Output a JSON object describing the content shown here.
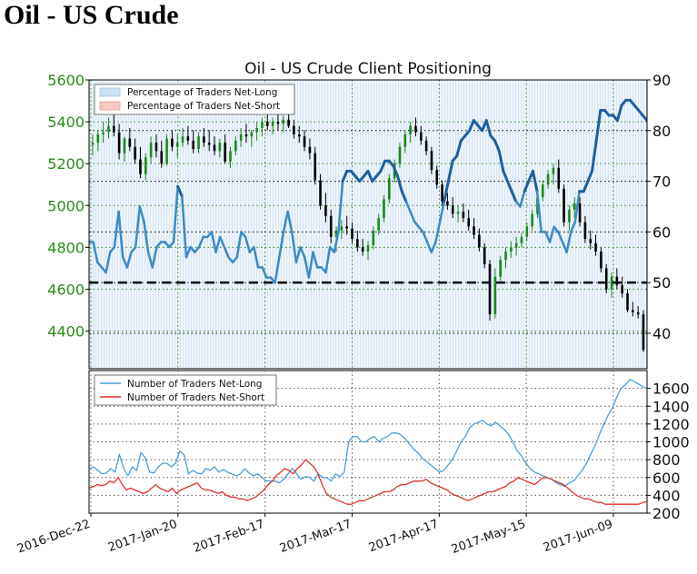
{
  "page": {
    "heading": "Oil - US Crude"
  },
  "chart_data": [
    {
      "type": "line",
      "title": "Oil - US Crude Client Positioning",
      "x_ticks": [
        "2016-Dec-22",
        "2017-Jan-20",
        "2017-Feb-17",
        "2017-Mar-17",
        "2017-Apr-17",
        "2017-May-15",
        "2017-Jun-09"
      ],
      "left_axis": {
        "ylim": [
          4220,
          5600
        ],
        "ticks": [
          4400,
          4600,
          4800,
          5000,
          5200,
          5400,
          5600
        ],
        "color": "#2a8a1a"
      },
      "right_axis": {
        "ylim": [
          33,
          90
        ],
        "ticks": [
          40,
          50,
          60,
          70,
          80,
          90
        ]
      },
      "grid": true,
      "legend": {
        "placement": "top-left",
        "entries": [
          "Percentage of Traders Net-Long",
          "Percentage of Traders Net-Short"
        ]
      },
      "reference_line_pct": 50,
      "price_ohlc": [
        [
          5290,
          5340,
          5240,
          5300
        ],
        [
          5300,
          5360,
          5260,
          5340
        ],
        [
          5340,
          5400,
          5300,
          5350
        ],
        [
          5350,
          5420,
          5320,
          5380
        ],
        [
          5380,
          5440,
          5330,
          5350
        ],
        [
          5350,
          5390,
          5220,
          5250
        ],
        [
          5250,
          5330,
          5210,
          5320
        ],
        [
          5320,
          5370,
          5260,
          5280
        ],
        [
          5280,
          5320,
          5200,
          5220
        ],
        [
          5220,
          5280,
          5130,
          5150
        ],
        [
          5150,
          5250,
          5120,
          5230
        ],
        [
          5230,
          5330,
          5200,
          5300
        ],
        [
          5300,
          5340,
          5230,
          5260
        ],
        [
          5260,
          5310,
          5180,
          5200
        ],
        [
          5200,
          5340,
          5190,
          5320
        ],
        [
          5320,
          5360,
          5260,
          5280
        ],
        [
          5280,
          5340,
          5230,
          5300
        ],
        [
          5300,
          5370,
          5280,
          5330
        ],
        [
          5330,
          5380,
          5290,
          5310
        ],
        [
          5310,
          5360,
          5250,
          5270
        ],
        [
          5270,
          5350,
          5250,
          5330
        ],
        [
          5330,
          5370,
          5280,
          5300
        ],
        [
          5300,
          5360,
          5260,
          5290
        ],
        [
          5290,
          5330,
          5240,
          5260
        ],
        [
          5260,
          5320,
          5230,
          5300
        ],
        [
          5300,
          5340,
          5200,
          5210
        ],
        [
          5210,
          5280,
          5180,
          5260
        ],
        [
          5260,
          5330,
          5240,
          5310
        ],
        [
          5310,
          5370,
          5280,
          5340
        ],
        [
          5340,
          5390,
          5300,
          5330
        ],
        [
          5330,
          5360,
          5280,
          5350
        ],
        [
          5350,
          5400,
          5310,
          5370
        ],
        [
          5370,
          5420,
          5330,
          5400
        ],
        [
          5400,
          5440,
          5360,
          5380
        ],
        [
          5380,
          5420,
          5340,
          5400
        ],
        [
          5400,
          5440,
          5360,
          5390
        ],
        [
          5390,
          5430,
          5350,
          5410
        ],
        [
          5410,
          5440,
          5370,
          5380
        ],
        [
          5380,
          5410,
          5320,
          5340
        ],
        [
          5340,
          5380,
          5300,
          5330
        ],
        [
          5330,
          5360,
          5260,
          5280
        ],
        [
          5280,
          5320,
          5220,
          5250
        ],
        [
          5250,
          5280,
          5100,
          5120
        ],
        [
          5120,
          5150,
          4980,
          5000
        ],
        [
          5000,
          5060,
          4920,
          4950
        ],
        [
          4950,
          4980,
          4820,
          4850
        ],
        [
          4850,
          4900,
          4780,
          4880
        ],
        [
          4880,
          4930,
          4840,
          4900
        ],
        [
          4900,
          4950,
          4860,
          4890
        ],
        [
          4890,
          4920,
          4820,
          4840
        ],
        [
          4840,
          4880,
          4780,
          4800
        ],
        [
          4800,
          4840,
          4760,
          4780
        ],
        [
          4780,
          4830,
          4740,
          4810
        ],
        [
          4810,
          4900,
          4790,
          4880
        ],
        [
          4880,
          4960,
          4860,
          4940
        ],
        [
          4940,
          5050,
          4920,
          5030
        ],
        [
          5030,
          5150,
          5010,
          5130
        ],
        [
          5130,
          5220,
          5110,
          5200
        ],
        [
          5200,
          5300,
          5180,
          5280
        ],
        [
          5280,
          5360,
          5250,
          5340
        ],
        [
          5340,
          5400,
          5300,
          5380
        ],
        [
          5380,
          5420,
          5330,
          5350
        ],
        [
          5350,
          5380,
          5290,
          5310
        ],
        [
          5310,
          5330,
          5240,
          5260
        ],
        [
          5260,
          5280,
          5150,
          5170
        ],
        [
          5170,
          5190,
          5080,
          5100
        ],
        [
          5100,
          5120,
          5000,
          5020
        ],
        [
          5020,
          5060,
          4980,
          5000
        ],
        [
          5000,
          5040,
          4940,
          4960
        ],
        [
          4960,
          5000,
          4920,
          4970
        ],
        [
          4970,
          5010,
          4920,
          4940
        ],
        [
          4940,
          4980,
          4880,
          4900
        ],
        [
          4900,
          4940,
          4840,
          4860
        ],
        [
          4860,
          4890,
          4780,
          4800
        ],
        [
          4800,
          4820,
          4700,
          4720
        ],
        [
          4720,
          4740,
          4450,
          4480
        ],
        [
          4480,
          4700,
          4460,
          4660
        ],
        [
          4660,
          4760,
          4640,
          4740
        ],
        [
          4740,
          4800,
          4700,
          4780
        ],
        [
          4780,
          4830,
          4750,
          4800
        ],
        [
          4800,
          4850,
          4760,
          4820
        ],
        [
          4820,
          4870,
          4800,
          4850
        ],
        [
          4850,
          4920,
          4830,
          4900
        ],
        [
          4900,
          4980,
          4880,
          4960
        ],
        [
          4960,
          5060,
          4940,
          5040
        ],
        [
          5040,
          5120,
          5020,
          5100
        ],
        [
          5100,
          5170,
          5080,
          5150
        ],
        [
          5150,
          5200,
          5100,
          5180
        ],
        [
          5180,
          5220,
          5060,
          5080
        ],
        [
          5080,
          5100,
          4900,
          4920
        ],
        [
          4920,
          5000,
          4880,
          4980
        ],
        [
          4980,
          5040,
          4940,
          5010
        ],
        [
          5010,
          5040,
          4900,
          4920
        ],
        [
          4920,
          4950,
          4820,
          4840
        ],
        [
          4840,
          4880,
          4790,
          4820
        ],
        [
          4820,
          4860,
          4760,
          4780
        ],
        [
          4780,
          4800,
          4680,
          4700
        ],
        [
          4700,
          4720,
          4580,
          4600
        ],
        [
          4600,
          4680,
          4560,
          4660
        ],
        [
          4660,
          4700,
          4600,
          4620
        ],
        [
          4620,
          4660,
          4560,
          4580
        ],
        [
          4580,
          4600,
          4490,
          4500
        ],
        [
          4500,
          4540,
          4470,
          4490
        ],
        [
          4490,
          4520,
          4460,
          4480
        ],
        [
          4480,
          4500,
          4300,
          4310
        ]
      ],
      "net_long_pct": [
        58,
        58,
        54,
        53,
        52,
        56,
        57,
        64,
        55,
        53,
        56,
        57,
        65,
        62,
        56,
        53,
        57,
        58,
        58,
        57,
        58,
        69,
        67,
        55,
        57,
        56,
        57,
        59,
        59,
        60,
        56,
        59,
        57,
        55,
        54,
        55,
        60,
        59,
        56,
        57,
        53,
        53,
        51,
        51,
        50,
        55,
        60,
        64,
        60,
        54,
        57,
        55,
        51,
        56,
        53,
        53,
        52,
        57,
        56,
        60,
        70,
        72,
        72,
        71,
        70,
        71,
        72,
        70,
        71,
        72,
        74,
        74,
        73,
        71,
        68,
        66,
        64,
        62,
        61,
        60,
        58,
        56,
        58,
        62,
        66,
        70,
        74,
        75,
        78,
        79,
        80,
        82,
        81,
        80,
        82,
        79,
        78,
        76,
        72,
        70,
        68,
        66,
        65,
        68,
        70,
        72,
        68,
        60,
        60,
        58,
        61,
        60,
        58,
        56,
        60,
        62,
        68,
        68,
        70,
        72,
        78,
        84,
        84,
        83,
        83,
        82,
        85,
        86,
        86,
        85,
        84,
        83,
        82
      ],
      "net_short_pct": [],
      "bottom_panel": {
        "right_axis": {
          "ylim": [
            200,
            1800
          ],
          "ticks": [
            200,
            400,
            600,
            800,
            1000,
            1200,
            1400,
            1600
          ]
        },
        "legend": {
          "placement": "top-left",
          "entries": [
            "Number of Traders Net-Long",
            "Number of Traders Net-Short"
          ]
        },
        "net_long_count": [
          700,
          720,
          680,
          640,
          650,
          700,
          660,
          860,
          700,
          620,
          720,
          680,
          880,
          820,
          660,
          650,
          720,
          760,
          760,
          720,
          760,
          900,
          850,
          640,
          680,
          650,
          640,
          700,
          680,
          720,
          660,
          690,
          660,
          640,
          620,
          640,
          700,
          650,
          620,
          640,
          600,
          560,
          560,
          560,
          540,
          580,
          640,
          700,
          640,
          580,
          610,
          600,
          560,
          640,
          600,
          600,
          560,
          640,
          610,
          660,
          1000,
          1060,
          1060,
          1000,
          1000,
          1040,
          1060,
          1000,
          1040,
          1060,
          1100,
          1100,
          1080,
          1040,
          980,
          920,
          880,
          820,
          780,
          740,
          700,
          660,
          680,
          740,
          800,
          900,
          1000,
          1060,
          1160,
          1200,
          1220,
          1240,
          1200,
          1180,
          1220,
          1180,
          1140,
          1080,
          1000,
          900,
          840,
          760,
          700,
          660,
          640,
          620,
          600,
          580,
          540,
          520,
          500,
          540,
          560,
          620,
          680,
          760,
          860,
          960,
          1080,
          1200,
          1300,
          1380,
          1500,
          1600,
          1640,
          1700,
          1680,
          1650,
          1620,
          1600
        ],
        "net_short_count": [
          480,
          500,
          520,
          510,
          520,
          560,
          540,
          600,
          520,
          460,
          480,
          460,
          440,
          420,
          440,
          480,
          520,
          480,
          460,
          440,
          480,
          420,
          460,
          480,
          500,
          520,
          540,
          480,
          460,
          460,
          440,
          420,
          440,
          400,
          380,
          380,
          360,
          360,
          340,
          360,
          380,
          420,
          460,
          520,
          560,
          620,
          660,
          700,
          680,
          640,
          700,
          740,
          800,
          760,
          720,
          640,
          520,
          420,
          380,
          360,
          340,
          320,
          300,
          300,
          320,
          340,
          340,
          360,
          380,
          400,
          420,
          440,
          440,
          460,
          500,
          520,
          520,
          540,
          560,
          560,
          560,
          580,
          540,
          520,
          500,
          480,
          460,
          420,
          400,
          380,
          360,
          340,
          360,
          380,
          400,
          420,
          440,
          440,
          460,
          480,
          500,
          540,
          560,
          600,
          580,
          560,
          540,
          520,
          560,
          600,
          600,
          580,
          560,
          540,
          520,
          480,
          440,
          400,
          380,
          360,
          360,
          340,
          320,
          320,
          300,
          300,
          300,
          300,
          300,
          300,
          300,
          300,
          300,
          320,
          330
        ]
      }
    }
  ]
}
